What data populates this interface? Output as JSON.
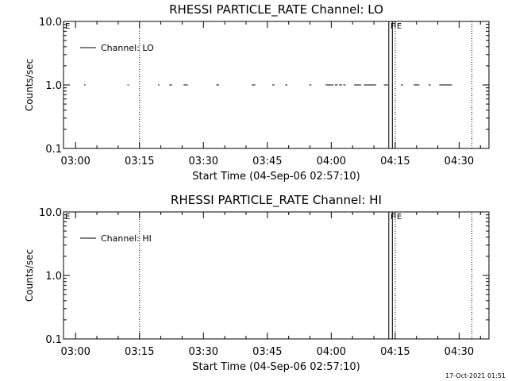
{
  "chart_data": [
    {
      "type": "line",
      "title": "RHESSI PARTICLE_RATE Channel: LO",
      "xlabel": "Start Time (04-Sep-06 02:57:10)",
      "ylabel": "Counts/sec",
      "yscale": "log",
      "ylim": [
        0.1,
        10.0
      ],
      "xlim": [
        "02:57:10",
        "04:37:00"
      ],
      "ytick_labels": [
        "0.1",
        "1.0",
        "10.0"
      ],
      "xtick_labels": [
        "03:00",
        "03:15",
        "03:30",
        "03:45",
        "04:00",
        "04:15",
        "04:30"
      ],
      "legend": {
        "entries": [
          "Channel: LO"
        ],
        "placement": "top-left"
      },
      "markers": [
        {
          "label": "E",
          "time": "02:57:10",
          "style": "dotted"
        },
        {
          "label": "",
          "time": "03:15:00",
          "style": "dotted"
        },
        {
          "label": "F",
          "time": "04:13:30",
          "style": "solid"
        },
        {
          "label": "",
          "time": "04:14:20",
          "style": "solid"
        },
        {
          "label": "E",
          "time": "04:15:00",
          "style": "dotted"
        },
        {
          "label": "",
          "time": "04:33:00",
          "style": "dotted"
        }
      ],
      "series": [
        {
          "name": "Channel: LO",
          "value": 1.0,
          "segments": [
            [
              "03:02:00",
              "03:02:20"
            ],
            [
              "03:12:10",
              "03:12:30"
            ],
            [
              "03:19:20",
              "03:19:40"
            ],
            [
              "03:22:00",
              "03:22:40"
            ],
            [
              "03:25:20",
              "03:26:20"
            ],
            [
              "03:33:00",
              "03:33:40"
            ],
            [
              "03:41:20",
              "03:42:10"
            ],
            [
              "03:46:10",
              "03:46:40"
            ],
            [
              "03:49:10",
              "03:49:40"
            ],
            [
              "03:54:50",
              "03:55:20"
            ],
            [
              "03:58:40",
              "04:00:30"
            ],
            [
              "04:00:50",
              "04:01:30"
            ],
            [
              "04:01:50",
              "04:02:30"
            ],
            [
              "04:02:50",
              "04:03:20"
            ],
            [
              "04:05:20",
              "04:07:00"
            ],
            [
              "04:07:40",
              "04:10:30"
            ],
            [
              "04:12:20",
              "04:13:20"
            ],
            [
              "04:16:20",
              "04:16:50"
            ],
            [
              "04:19:20",
              "04:20:40"
            ],
            [
              "04:22:50",
              "04:23:20"
            ],
            [
              "04:25:20",
              "04:28:20"
            ]
          ]
        }
      ]
    },
    {
      "type": "line",
      "title": "RHESSI PARTICLE_RATE Channel: HI",
      "xlabel": "Start Time (04-Sep-06 02:57:10)",
      "ylabel": "Counts/sec",
      "yscale": "log",
      "ylim": [
        0.1,
        10.0
      ],
      "xlim": [
        "02:57:10",
        "04:37:00"
      ],
      "ytick_labels": [
        "0.1",
        "1.0",
        "10.0"
      ],
      "xtick_labels": [
        "03:00",
        "03:15",
        "03:30",
        "03:45",
        "04:00",
        "04:15",
        "04:30"
      ],
      "legend": {
        "entries": [
          "Channel: HI"
        ],
        "placement": "top-left"
      },
      "markers": [
        {
          "label": "E",
          "time": "02:57:10",
          "style": "dotted"
        },
        {
          "label": "",
          "time": "03:15:00",
          "style": "dotted"
        },
        {
          "label": "F",
          "time": "04:13:30",
          "style": "solid"
        },
        {
          "label": "",
          "time": "04:14:20",
          "style": "solid"
        },
        {
          "label": "E",
          "time": "04:15:00",
          "style": "dotted"
        },
        {
          "label": "",
          "time": "04:33:00",
          "style": "dotted"
        }
      ],
      "series": [
        {
          "name": "Channel: HI",
          "value": null,
          "segments": []
        }
      ]
    }
  ],
  "footer": {
    "timestamp": "17-Oct-2021 01:51"
  }
}
